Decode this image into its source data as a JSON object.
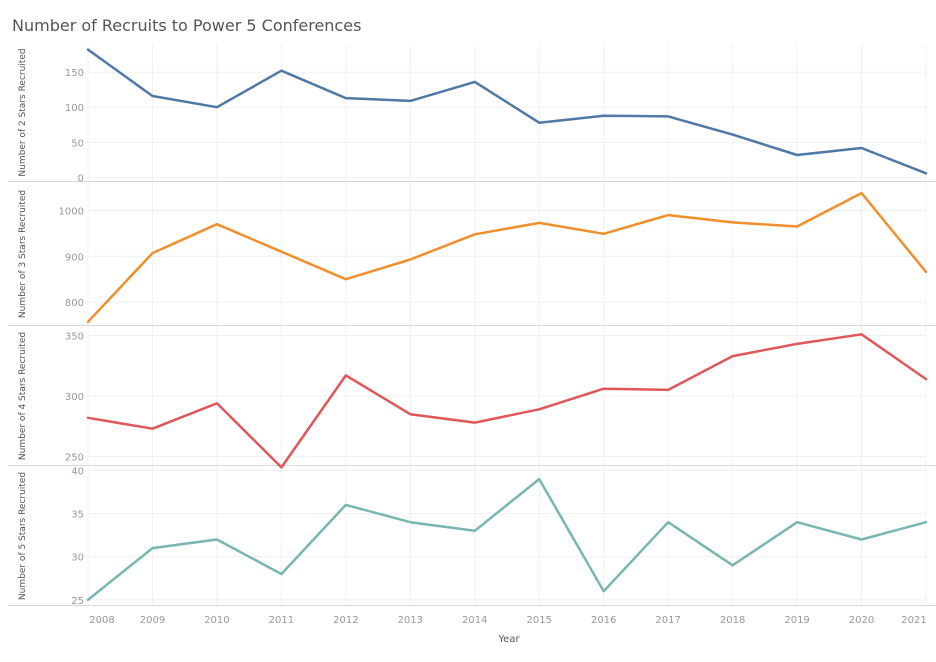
{
  "title": "Number of Recruits to Power 5 Conferences",
  "chart_data": {
    "type": "line",
    "title": "Number of Recruits to Power 5 Conferences",
    "xlabel": "Year",
    "x": [
      2008,
      2009,
      2010,
      2011,
      2012,
      2013,
      2014,
      2015,
      2016,
      2017,
      2018,
      2019,
      2020,
      2021
    ],
    "grid": true,
    "panels": [
      {
        "ylabel": "Number of 2 Stars Recruited",
        "color": "#4e79a7",
        "yticks": [
          0,
          50,
          100,
          150
        ],
        "ylim": [
          -5,
          190
        ],
        "values": [
          182,
          116,
          100,
          152,
          113,
          109,
          136,
          78,
          88,
          87,
          61,
          32,
          42,
          6
        ]
      },
      {
        "ylabel": "Number of 3 Stars Recruited",
        "color": "#f28e2b",
        "yticks": [
          800,
          900,
          1000
        ],
        "ylim": [
          750,
          1060
        ],
        "values": [
          757,
          907,
          970,
          910,
          850,
          893,
          948,
          973,
          949,
          990,
          974,
          965,
          1038,
          866
        ]
      },
      {
        "ylabel": "Number of 4 Stars Recruited",
        "color": "#e15759",
        "yticks": [
          250,
          300,
          350
        ],
        "ylim": [
          243,
          357
        ],
        "values": [
          282,
          273,
          294,
          241,
          317,
          285,
          278,
          289,
          306,
          305,
          333,
          343,
          351,
          314
        ]
      },
      {
        "ylabel": "Number of 5 Stars Recruited",
        "color": "#76b7b2",
        "yticks": [
          25,
          30,
          35,
          40
        ],
        "ylim": [
          24.4,
          40.4
        ],
        "values": [
          25,
          31,
          32,
          28,
          36,
          34,
          33,
          39,
          26,
          34,
          29,
          34,
          32,
          34
        ]
      }
    ]
  }
}
